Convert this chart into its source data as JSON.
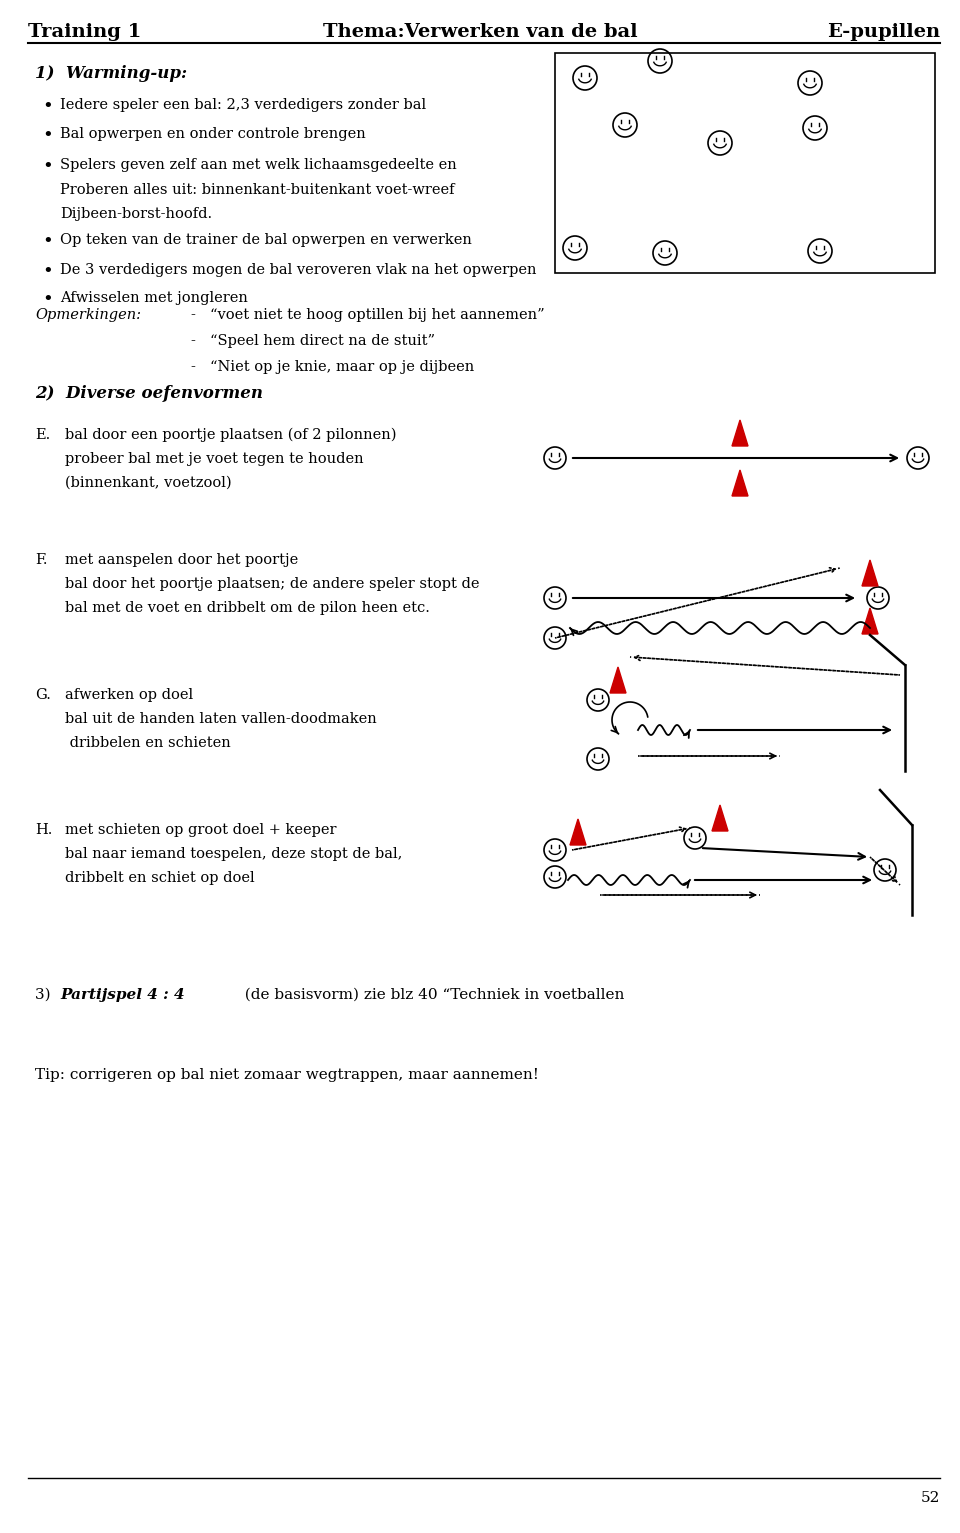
{
  "title_left": "Training 1",
  "title_center": "Thema:Verwerken van de bal",
  "title_right": "E-pupillen",
  "page_number": "52",
  "background_color": "#ffffff",
  "text_color": "#000000",
  "red_color": "#cc0000",
  "section1_heading": "1)  Warming-up:",
  "bullet1": "Iedere speler een bal: 2,3 verdedigers zonder bal",
  "bullet2": "Bal opwerpen en onder controle brengen",
  "bullet3a": "Spelers geven zelf aan met welk lichaamsgedeelte en",
  "bullet3b": "Proberen alles uit: binnenkant-buitenkant voet-wreef",
  "bullet3c": "Dijbeen-borst-hoofd.",
  "bullet4": "Op teken van de trainer de bal opwerpen en verwerken",
  "bullet5": "De 3 verdedigers mogen de bal veroveren vlak na het opwerpen",
  "bullet6": "Afwisselen met jongleren",
  "opmerkingen_label": "Opmerkingen:",
  "opmerking1": "voet niet te hoog optillen bij het aannemen",
  "opmerking2": "Speel hem direct na de stuit",
  "opmerking3": "Niet op je knie, maar op je dijbeen",
  "section2_heading": "2)  Diverse oefenvormen",
  "E_label": "E.",
  "E_text1": "bal door een poortje plaatsen (of 2 pilonnen)",
  "E_text2": "probeer bal met je voet tegen te houden",
  "E_text3": "(binnenkant, voetzool)",
  "F_label": "F.",
  "F_text1": "met aanspelen door het poortje",
  "F_text2": "bal door het poortje plaatsen; de andere speler stopt de",
  "F_text3": "bal met de voet en dribbelt om de pilon heen etc.",
  "G_label": "G.",
  "G_text1": "afwerken op doel",
  "G_text2": "bal uit de handen laten vallen-doodmaken",
  "G_text3": " dribbelen en schieten",
  "H_label": "H.",
  "H_text1": "met schieten op groot doel + keeper",
  "H_text2": "bal naar iemand toespelen, deze stopt de bal,",
  "H_text3": "dribbelt en schiet op doel",
  "section3_num": "3) ",
  "section3_bold": "Partijspel 4 : 4",
  "section3_rest": "  (de basisvorm) zie blz 40 “Techniek in voetballen",
  "tip_text": "Tip: corrigeren op bal niet zomaar wegtrappen, maar aannemen!"
}
